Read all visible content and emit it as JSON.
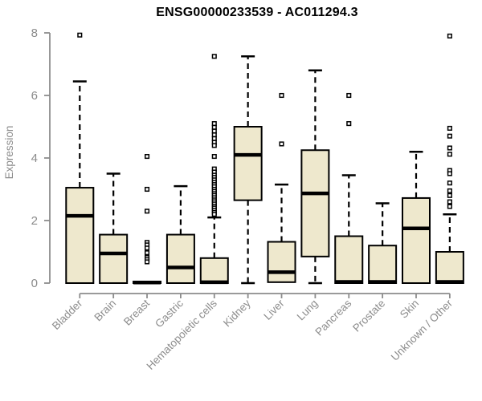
{
  "chart_data": {
    "type": "boxplot",
    "title": "ENSG00000233539 - AC011294.3",
    "ylabel": "Expression",
    "ylim": [
      0,
      8
    ],
    "yticks": [
      0,
      2,
      4,
      6,
      8
    ],
    "grid": false,
    "legend": "none",
    "box_fill": "#EEE8CD",
    "box_border": "#000000",
    "axis_color": "#8C8C8C",
    "outlier_marker": "open-square",
    "categories": [
      "Bladder",
      "Brain",
      "Breast",
      "Gastric",
      "Hematopoietic cells",
      "Kidney",
      "Liver",
      "Lung",
      "Pancreas",
      "Prostate",
      "Skin",
      "Unknown / Other"
    ],
    "series": [
      {
        "category": "Bladder",
        "q1": 0,
        "median": 2.15,
        "q3": 3.05,
        "whisker_low": 0,
        "whisker_high": 6.45,
        "outliers": [
          7.93
        ]
      },
      {
        "category": "Brain",
        "q1": 0,
        "median": 0.95,
        "q3": 1.55,
        "whisker_low": 0,
        "whisker_high": 3.5,
        "outliers": []
      },
      {
        "category": "Breast",
        "q1": 0,
        "median": 0.02,
        "q3": 0.05,
        "whisker_low": 0,
        "whisker_high": 0.05,
        "outliers": [
          4.05,
          3.0,
          2.3,
          1.3,
          1.22,
          1.12,
          0.97,
          0.82,
          0.75,
          0.68
        ]
      },
      {
        "category": "Gastric",
        "q1": 0,
        "median": 0.5,
        "q3": 1.55,
        "whisker_low": 0,
        "whisker_high": 3.1,
        "outliers": []
      },
      {
        "category": "Hematopoietic cells",
        "q1": 0,
        "median": 0.03,
        "q3": 0.8,
        "whisker_low": 0,
        "whisker_high": 2.1,
        "outliers": [
          7.25,
          5.1,
          4.98,
          4.86,
          4.74,
          4.62,
          4.5,
          4.4,
          4.05,
          3.65,
          3.55,
          3.45,
          3.38,
          3.3,
          3.22,
          3.15,
          3.08,
          3.0,
          2.93,
          2.86,
          2.8,
          2.73,
          2.66,
          2.6,
          2.53,
          2.46,
          2.4,
          2.33,
          2.26,
          2.2
        ]
      },
      {
        "category": "Kidney",
        "q1": 2.65,
        "median": 4.1,
        "q3": 5.0,
        "whisker_low": 0,
        "whisker_high": 7.25,
        "outliers": []
      },
      {
        "category": "Liver",
        "q1": 0.03,
        "median": 0.35,
        "q3": 1.32,
        "whisker_low": 0,
        "whisker_high": 3.15,
        "outliers": [
          6.0,
          4.45
        ]
      },
      {
        "category": "Lung",
        "q1": 0.85,
        "median": 2.87,
        "q3": 4.25,
        "whisker_low": 0,
        "whisker_high": 6.8,
        "outliers": []
      },
      {
        "category": "Pancreas",
        "q1": 0,
        "median": 0.04,
        "q3": 1.5,
        "whisker_low": 0,
        "whisker_high": 3.45,
        "outliers": [
          6.0,
          5.1
        ]
      },
      {
        "category": "Prostate",
        "q1": 0,
        "median": 0.04,
        "q3": 1.2,
        "whisker_low": 0,
        "whisker_high": 2.55,
        "outliers": []
      },
      {
        "category": "Skin",
        "q1": 0,
        "median": 1.75,
        "q3": 2.72,
        "whisker_low": 0,
        "whisker_high": 4.2,
        "outliers": []
      },
      {
        "category": "Unknown / Other",
        "q1": 0,
        "median": 0.04,
        "q3": 1.0,
        "whisker_low": 0,
        "whisker_high": 2.2,
        "outliers": [
          7.9,
          4.95,
          4.7,
          4.32,
          4.12,
          3.6,
          3.5,
          3.2,
          2.95,
          2.8,
          2.6,
          2.45
        ]
      }
    ]
  }
}
